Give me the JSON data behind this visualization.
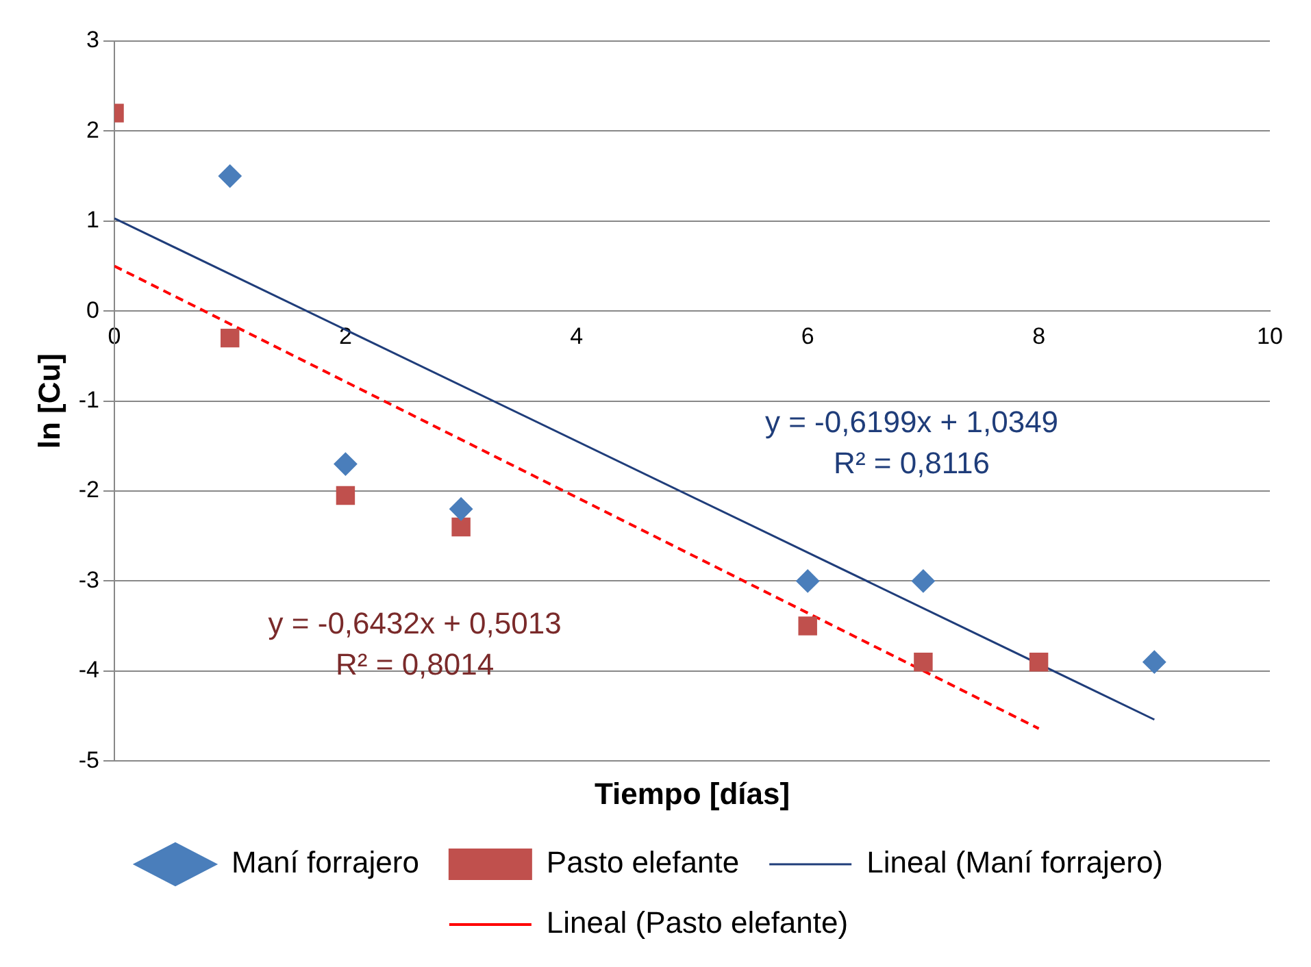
{
  "chart_data": {
    "type": "scatter",
    "xlabel": "Tiempo [días]",
    "ylabel": "ln [Cu]",
    "xlim": [
      0,
      10
    ],
    "xticks": [
      0,
      2,
      4,
      6,
      8,
      10
    ],
    "ylim": [
      -5,
      3
    ],
    "yticks": [
      -5,
      -4,
      -3,
      -2,
      -1,
      0,
      1,
      2,
      3
    ],
    "grid": "y",
    "legend": "bottom",
    "series": [
      {
        "name": "Maní forrajero",
        "type": "scatter",
        "marker": "diamond",
        "color": "#4a7ebb",
        "x": [
          1,
          2,
          3,
          6,
          7,
          9
        ],
        "values": [
          1.5,
          -1.7,
          -2.2,
          -3.0,
          -3.0,
          -3.9
        ]
      },
      {
        "name": "Pasto elefante",
        "type": "scatter",
        "marker": "square",
        "color": "#c0504d",
        "x": [
          0,
          1,
          2,
          3,
          6,
          7,
          8
        ],
        "values": [
          2.2,
          -0.3,
          -2.05,
          -2.4,
          -3.5,
          -3.9,
          -3.9
        ]
      },
      {
        "name": "Lineal (Maní forrajero)",
        "type": "line",
        "marker": "none",
        "line_style": "solid",
        "color": "#1f3d7a",
        "x": [
          0,
          9
        ],
        "values": [
          1.03,
          -4.54
        ]
      },
      {
        "name": "Lineal (Pasto elefante)",
        "type": "line",
        "marker": "none",
        "line_style": "dashed",
        "color": "#ff0000",
        "x": [
          0,
          8
        ],
        "values": [
          0.5,
          -4.64
        ]
      }
    ],
    "annotations": [
      "y = -0,6199x + 1,0349\nR² = 0,8116",
      "y = -0,6432x + 0,5013\nR² = 0,8014"
    ]
  }
}
